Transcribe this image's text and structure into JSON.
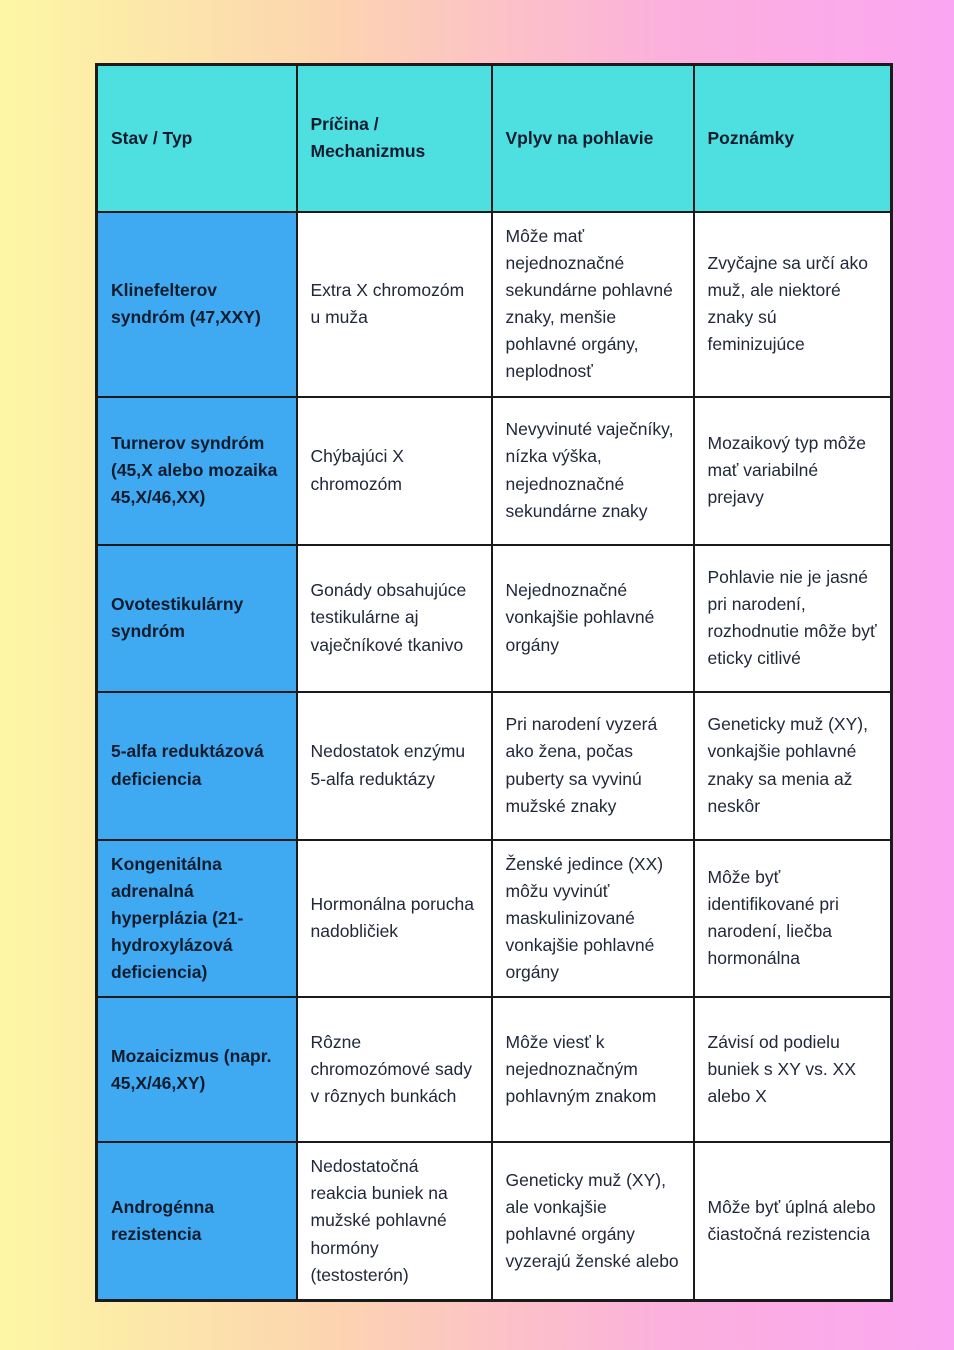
{
  "colors": {
    "page_bg_yellow": "#fdf7a4",
    "page_bg_peach": "#fcd4b0",
    "page_bg_pink": "#fbb0dd",
    "page_bg_magenta": "#fba6f2",
    "header_bg": "#4ee0e0",
    "condition_col_bg": "#3fa9f1",
    "cell_bg": "#ffffff",
    "border": "#1a1a1a",
    "heading_text": "#111c2e",
    "body_text": "#20283a"
  },
  "table": {
    "columns": [
      "Stav / Typ",
      "Príčina / Mechanizmus",
      "Vplyv na pohlavie",
      "Poznámky"
    ],
    "rows": [
      {
        "condition": "Klinefelterov syndróm (47,XXY)",
        "cause": "Extra X chromozóm u muža",
        "effect": "Môže mať nejednoznačné sekundárne pohlavné znaky, menšie pohlavné orgány, neplodnosť",
        "notes": "Zvyčajne sa určí ako muž, ale niektoré znaky sú feminizujúce"
      },
      {
        "condition": "Turnerov syndróm (45,X alebo mozaika 45,X/46,XX)",
        "cause": "Chýbajúci X chromozóm",
        "effect": "Nevyvinuté vaječníky, nízka výška, nejednoznačné sekundárne znaky",
        "notes": "Mozaikový typ môže mať variabilné prejavy"
      },
      {
        "condition": "Ovotestikulárny syndróm",
        "cause": "Gonády obsahujúce testikulárne aj vaječníkové tkanivo",
        "effect": "Nejednoznačné vonkajšie pohlavné orgány",
        "notes": "Pohlavie nie je jasné pri narodení, rozhodnutie môže byť eticky citlivé"
      },
      {
        "condition": "5-alfa reduktázová deficiencia",
        "cause": "Nedostatok enzýmu 5-alfa reduktázy",
        "effect": "Pri narodení vyzerá ako žena, počas puberty sa vyvinú mužské znaky",
        "notes": "Geneticky muž (XY), vonkajšie pohlavné znaky sa menia až neskôr"
      },
      {
        "condition": "Kongenitálna adrenalná hyperplázia (21-hydroxylázová deficiencia)",
        "cause": "Hormonálna porucha nadobličiek",
        "effect": "Ženské jedince (XX) môžu vyvinúť maskulinizované vonkajšie pohlavné orgány",
        "notes": "Môže byť identifikované pri narodení, liečba hormonálna"
      },
      {
        "condition": "Mozaicizmus (napr. 45,X/46,XY)",
        "cause": "Rôzne chromozómové sady v rôznych bunkách",
        "effect": "Môže viesť k nejednoznačným pohlavným znakom",
        "notes": "Závisí od podielu buniek s XY vs. XX alebo X"
      },
      {
        "condition": "Androgénna rezistencia",
        "cause": "Nedostatočná reakcia buniek na mužské pohlavné hormóny (testosterón)",
        "effect": "Geneticky muž (XY), ale vonkajšie pohlavné orgány vyzerajú ženské alebo",
        "notes": "Môže byť úplná alebo čiastočná rezistencia"
      }
    ]
  }
}
